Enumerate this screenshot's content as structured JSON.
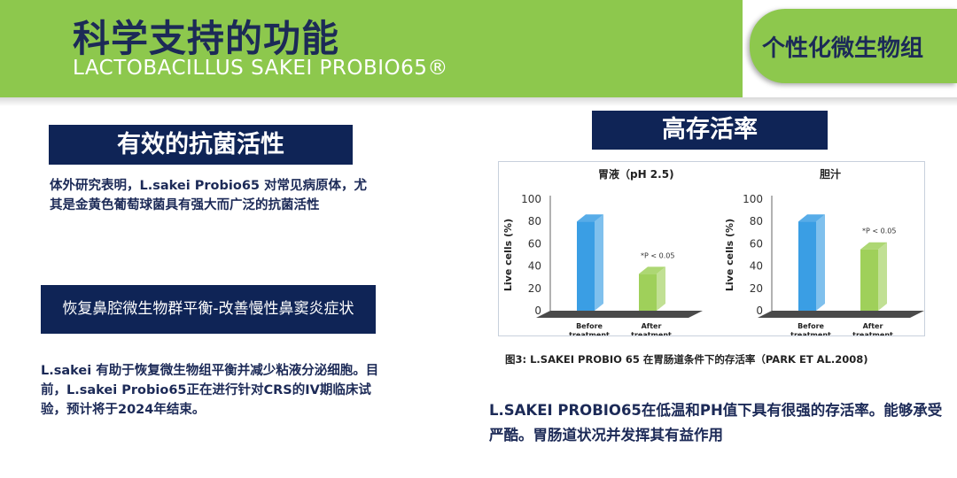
{
  "header": {
    "title": "科学支持的功能",
    "subtitle": "LACTOBACILLUS SAKEI PROBIO65®",
    "tag": "个性化微生物组"
  },
  "left": {
    "heading1": "有效的抗菌活性",
    "text1": "体外研究表明，L.sakei Probio65 对常见病原体，尤其是金黄色葡萄球菌具有强大而广泛的抗菌活性",
    "heading2": "恢复鼻腔微生物群平衡-改善慢性鼻窦炎症状",
    "text2": "L.sakei 有助于恢复微生物组平衡并减少粘液分泌细胞。目前，L.sakei Probio65正在进行针对CRS的IV期临床试验，预计将于2024年结束。"
  },
  "right": {
    "heading": "高存活率",
    "caption": "图3: L.SAKEI PROBIO 65 在胃肠道条件下的存活率（PARK ET AL.2008)",
    "summary": "L.SAKEI PROBIO65在低温和PH值下具有很强的存活率。能够承受严酷。胃肠道状况并发挥其有益作用"
  },
  "colors": {
    "green": "#8dc84d",
    "navy": "#0f2456",
    "before_bar": "#3a9ee4",
    "after_bar": "#9fd05a"
  },
  "chart_data": [
    {
      "type": "bar",
      "title": "胃液（pH 2.5)",
      "ylabel": "Live cells (%)",
      "ylim": [
        0,
        100
      ],
      "yticks": [
        0,
        20,
        40,
        60,
        80,
        100
      ],
      "categories": [
        "Before treatment",
        "After treatment"
      ],
      "values": [
        80,
        33
      ],
      "annotation": "*P < 0.05"
    },
    {
      "type": "bar",
      "title": "胆汁",
      "ylabel": "Live cells (%)",
      "ylim": [
        0,
        100
      ],
      "yticks": [
        0,
        20,
        40,
        60,
        80,
        100
      ],
      "categories": [
        "Before treatment",
        "After treatment"
      ],
      "values": [
        80,
        55
      ],
      "annotation": "*P < 0.05"
    }
  ]
}
